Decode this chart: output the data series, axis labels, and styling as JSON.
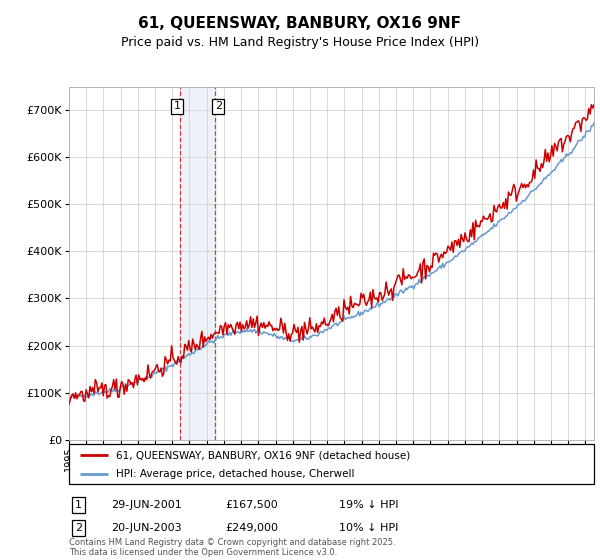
{
  "title": "61, QUEENSWAY, BANBURY, OX16 9NF",
  "subtitle": "Price paid vs. HM Land Registry's House Price Index (HPI)",
  "legend_line1": "61, QUEENSWAY, BANBURY, OX16 9NF (detached house)",
  "legend_line2": "HPI: Average price, detached house, Cherwell",
  "red_color": "#cc0000",
  "blue_color": "#6699cc",
  "sale1_label": "1",
  "sale1_date": "29-JUN-2001",
  "sale1_price": "£167,500",
  "sale1_hpi": "19% ↓ HPI",
  "sale1_year": 2001.458,
  "sale2_label": "2",
  "sale2_date": "20-JUN-2003",
  "sale2_price": "£249,000",
  "sale2_hpi": "10% ↓ HPI",
  "sale2_year": 2003.458,
  "footer": "Contains HM Land Registry data © Crown copyright and database right 2025.\nThis data is licensed under the Open Government Licence v3.0.",
  "ylim_max": 750000,
  "xlim_min": 1995,
  "xlim_max": 2025.5,
  "yticks": [
    0,
    100000,
    200000,
    300000,
    400000,
    500000,
    600000,
    700000
  ],
  "ytick_labels": [
    "£0",
    "£100K",
    "£200K",
    "£300K",
    "£400K",
    "£500K",
    "£600K",
    "£700K"
  ]
}
